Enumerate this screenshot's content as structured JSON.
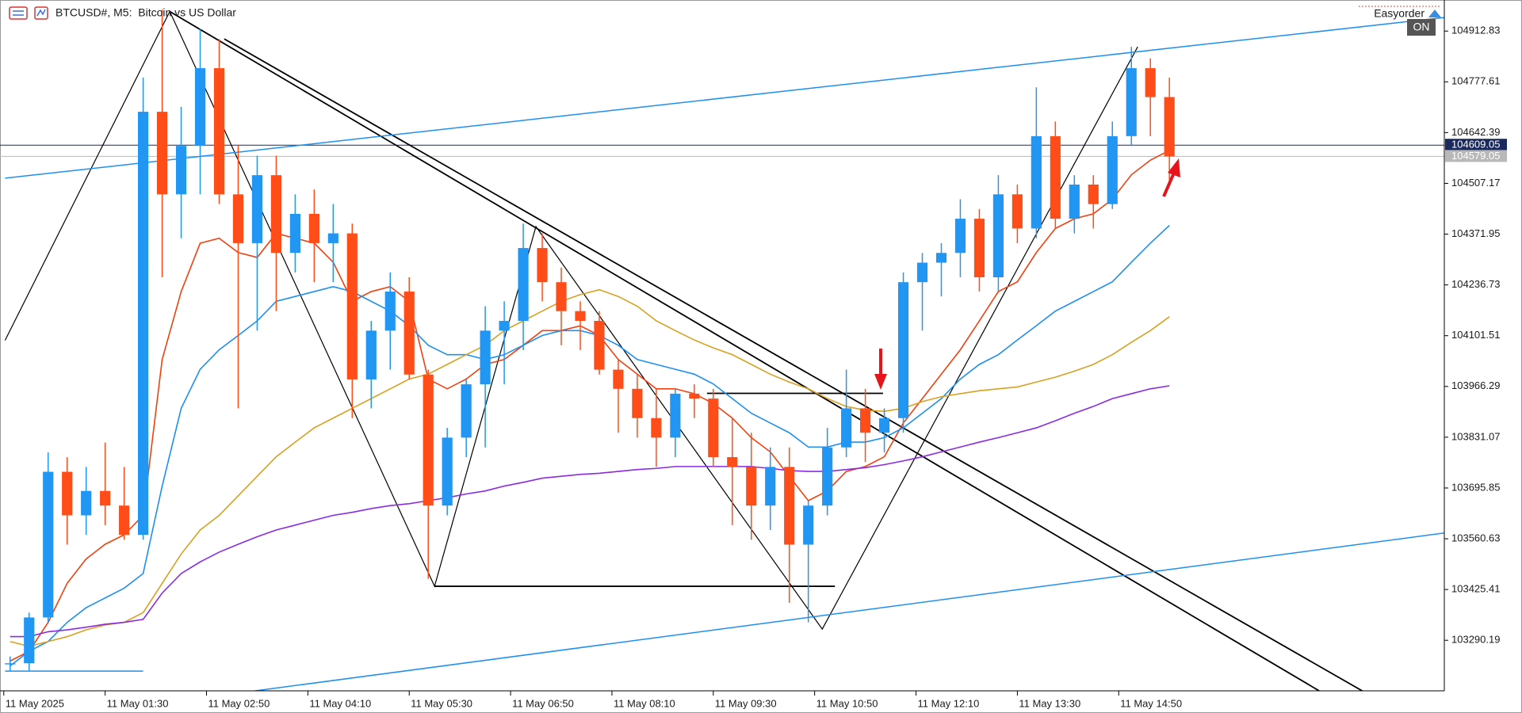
{
  "chart_data": {
    "type": "candlestick",
    "title": "BTCUSD#, M5:  Bitcoin vs US Dollar",
    "expert": "Easyorder",
    "toggle": "ON",
    "x": [
      15,
      30,
      45,
      60,
      75,
      90,
      105,
      120,
      135,
      150,
      165,
      180,
      195,
      210,
      225,
      240,
      255,
      270,
      285,
      300,
      315,
      330,
      345,
      360,
      375,
      390,
      405,
      420,
      435,
      450,
      465,
      480,
      495,
      510,
      525,
      540,
      555,
      570,
      585,
      600,
      615,
      630,
      645,
      660,
      675,
      690,
      705,
      720,
      735,
      750,
      765,
      780,
      795,
      810,
      825,
      840,
      855,
      870,
      885,
      900,
      915,
      930
    ],
    "open": [
      103226,
      103229,
      103351,
      103739,
      103623,
      103688,
      103649,
      103571,
      104698,
      104478,
      104607,
      104814,
      104478,
      104348,
      104529,
      104322,
      104426,
      104348,
      104374,
      103985,
      104115,
      104219,
      103998,
      103649,
      103830,
      103972,
      104115,
      104141,
      104335,
      104244,
      104167,
      104141,
      104011,
      103960,
      103882,
      103830,
      103947,
      103934,
      103778,
      103752,
      103649,
      103752,
      103545,
      103649,
      103804,
      103908,
      103843,
      103882,
      104244,
      104296,
      104322,
      104413,
      104257,
      104478,
      104387,
      104633,
      104413,
      104504,
      104452,
      104633,
      104814,
      104737
    ],
    "high": [
      103247,
      103364,
      103791,
      103778,
      103752,
      103817,
      103752,
      104789,
      104970,
      104711,
      104918,
      104892,
      104607,
      104581,
      104581,
      104478,
      104491,
      104452,
      104400,
      104141,
      104270,
      104257,
      104011,
      103856,
      103985,
      104180,
      104193,
      104400,
      104374,
      104283,
      104193,
      104167,
      104037,
      103998,
      103960,
      103960,
      103972,
      103960,
      103882,
      103843,
      103804,
      103804,
      103662,
      103856,
      104011,
      103960,
      103908,
      104270,
      104322,
      104348,
      104465,
      104439,
      104529,
      104504,
      104763,
      104672,
      104529,
      104529,
      104672,
      104871,
      104840,
      104789
    ],
    "low": [
      103208,
      103208,
      103338,
      103545,
      103571,
      103597,
      103558,
      103558,
      104257,
      104361,
      104478,
      104452,
      103908,
      104115,
      104167,
      104270,
      104244,
      104244,
      103882,
      103908,
      104011,
      103985,
      103454,
      103623,
      103778,
      103804,
      103972,
      104063,
      104193,
      104076,
      104063,
      103998,
      103843,
      103830,
      103752,
      103778,
      103882,
      103752,
      103597,
      103558,
      103584,
      103390,
      103338,
      103623,
      103778,
      103765,
      103791,
      103843,
      104115,
      104206,
      104257,
      104219,
      104219,
      104348,
      104361,
      104387,
      104374,
      104387,
      104439,
      104607,
      104633,
      104516
    ],
    "close": [
      103229,
      103351,
      103739,
      103623,
      103688,
      103649,
      103571,
      104698,
      104478,
      104607,
      104814,
      104478,
      104348,
      104529,
      104322,
      104426,
      104348,
      104374,
      103985,
      104115,
      104219,
      103998,
      103649,
      103830,
      103972,
      104115,
      104141,
      104335,
      104244,
      104167,
      104141,
      104011,
      103960,
      103882,
      103830,
      103947,
      103934,
      103778,
      103752,
      103649,
      103752,
      103545,
      103649,
      103804,
      103908,
      103843,
      103882,
      104244,
      104296,
      104322,
      104413,
      104257,
      104478,
      104387,
      104633,
      104413,
      104504,
      104452,
      104633,
      104814,
      104737,
      104579.05
    ],
    "up_color": "#2196f3",
    "down_color": "#ff4d1a",
    "overlays": [
      {
        "color": "#f2400f",
        "values": [
          103235,
          103261,
          103338,
          103442,
          103507,
          103546,
          103571,
          103623,
          104038,
          104219,
          104348,
          104361,
          104323,
          104310,
          104374,
          104361,
          104348,
          104297,
          104193,
          104219,
          104232,
          104193,
          103986,
          103960,
          103986,
          104025,
          104038,
          104076,
          104115,
          104115,
          104128,
          104102,
          104038,
          103999,
          103960,
          103960,
          103947,
          103921,
          103882,
          103830,
          103792,
          103727,
          103662,
          103688,
          103740,
          103753,
          103779,
          103869,
          103934,
          103999,
          104064,
          104141,
          104219,
          104245,
          104323,
          104387,
          104413,
          104426,
          104465,
          104530,
          104569,
          104595
        ]
      },
      {
        "color": "#1e8ff0",
        "values": [
          103222,
          103261,
          103287,
          103338,
          103377,
          103403,
          103429,
          103468,
          103701,
          103908,
          104012,
          104064,
          104102,
          104141,
          104193,
          104206,
          104219,
          104232,
          104219,
          104193,
          104167,
          104128,
          104076,
          104051,
          104051,
          104038,
          104051,
          104076,
          104102,
          104115,
          104115,
          104102,
          104076,
          104038,
          104025,
          104012,
          103999,
          103973,
          103934,
          103895,
          103869,
          103843,
          103805,
          103805,
          103818,
          103818,
          103830,
          103856,
          103895,
          103934,
          103986,
          104025,
          104051,
          104090,
          104128,
          104167,
          104193,
          104219,
          104245,
          104297,
          104348,
          104395
        ]
      },
      {
        "color": "#d9a021",
        "values": [
          103287,
          103274,
          103287,
          103300,
          103318,
          103331,
          103338,
          103364,
          103442,
          103520,
          103584,
          103623,
          103675,
          103727,
          103779,
          103818,
          103856,
          103882,
          103908,
          103934,
          103960,
          103986,
          103999,
          104025,
          104051,
          104076,
          104115,
          104141,
          104167,
          104193,
          104211,
          104224,
          104206,
          104180,
          104141,
          104115,
          104090,
          104069,
          104051,
          104025,
          103999,
          103978,
          103960,
          103934,
          103913,
          103903,
          103900,
          103908,
          103926,
          103939,
          103947,
          103955,
          103960,
          103965,
          103978,
          103991,
          104007,
          104025,
          104051,
          104084,
          104115,
          104152
        ]
      },
      {
        "color": "#8a2be2",
        "values": [
          103300,
          103300,
          103313,
          103318,
          103325,
          103333,
          103338,
          103346,
          103416,
          103468,
          103499,
          103525,
          103546,
          103566,
          103584,
          103597,
          103610,
          103623,
          103631,
          103641,
          103649,
          103654,
          103662,
          103670,
          103680,
          103688,
          103701,
          103711,
          103722,
          103727,
          103732,
          103735,
          103740,
          103745,
          103748,
          103753,
          103753,
          103753,
          103753,
          103753,
          103748,
          103742,
          103740,
          103740,
          103745,
          103750,
          103758,
          103768,
          103779,
          103792,
          103805,
          103818,
          103830,
          103843,
          103856,
          103875,
          103895,
          103913,
          103934,
          103947,
          103960,
          103968
        ]
      }
    ],
    "trend_lines": [
      {
        "color": "#000000",
        "x": [
          11,
          141,
          350,
          430,
          656,
          905
        ],
        "y": [
          104089,
          104965,
          103434,
          104392,
          103320,
          104871
        ]
      },
      {
        "color": "#000000",
        "x": [
          141,
          1049
        ],
        "y": [
          104965,
          103154
        ]
      },
      {
        "color": "#000000",
        "x": [
          184,
          1083
        ],
        "y": [
          104892,
          103154
        ]
      },
      {
        "color": "#1e8ff0",
        "x": [
          11,
          1147
        ],
        "y": [
          104521,
          104949
        ]
      },
      {
        "color": "#1e8ff0",
        "x": [
          205,
          1147
        ],
        "y": [
          103154,
          103576
        ]
      },
      {
        "color": "#1e8ff0",
        "x": [
          11,
          120
        ],
        "y": [
          103208,
          103208
        ]
      },
      {
        "color": "#000000",
        "x": [
          350,
          666
        ],
        "y": [
          103434,
          103434
        ]
      },
      {
        "color": "#000000",
        "x": [
          565,
          704
        ],
        "y": [
          103948,
          103948
        ]
      }
    ],
    "price_lines": [
      {
        "value": 104609.05,
        "color": "#1b2a5c"
      },
      {
        "value": 104579.05,
        "color": "#b8b8b8"
      }
    ],
    "xlim": [
      7,
      1147
    ],
    "ylim": [
      103155.6,
      104995.6
    ],
    "xticks": [
      {
        "value": 10,
        "label": "11 May 2025"
      },
      {
        "value": 90,
        "label": "11 May 01:30"
      },
      {
        "value": 170,
        "label": "11 May 02:50"
      },
      {
        "value": 250,
        "label": "11 May 04:10"
      },
      {
        "value": 330,
        "label": "11 May 05:30"
      },
      {
        "value": 410,
        "label": "11 May 06:50"
      },
      {
        "value": 490,
        "label": "11 May 08:10"
      },
      {
        "value": 570,
        "label": "11 May 09:30"
      },
      {
        "value": 650,
        "label": "11 May 10:50"
      },
      {
        "value": 730,
        "label": "11 May 12:10"
      },
      {
        "value": 810,
        "label": "11 May 13:30"
      },
      {
        "value": 890,
        "label": "11 May 14:50"
      }
    ],
    "yticks": [
      104912.83,
      104777.61,
      104642.39,
      104507.17,
      104371.95,
      104236.73,
      104101.51,
      103966.29,
      103831.07,
      103695.85,
      103560.63,
      103425.41,
      103290.19
    ]
  }
}
